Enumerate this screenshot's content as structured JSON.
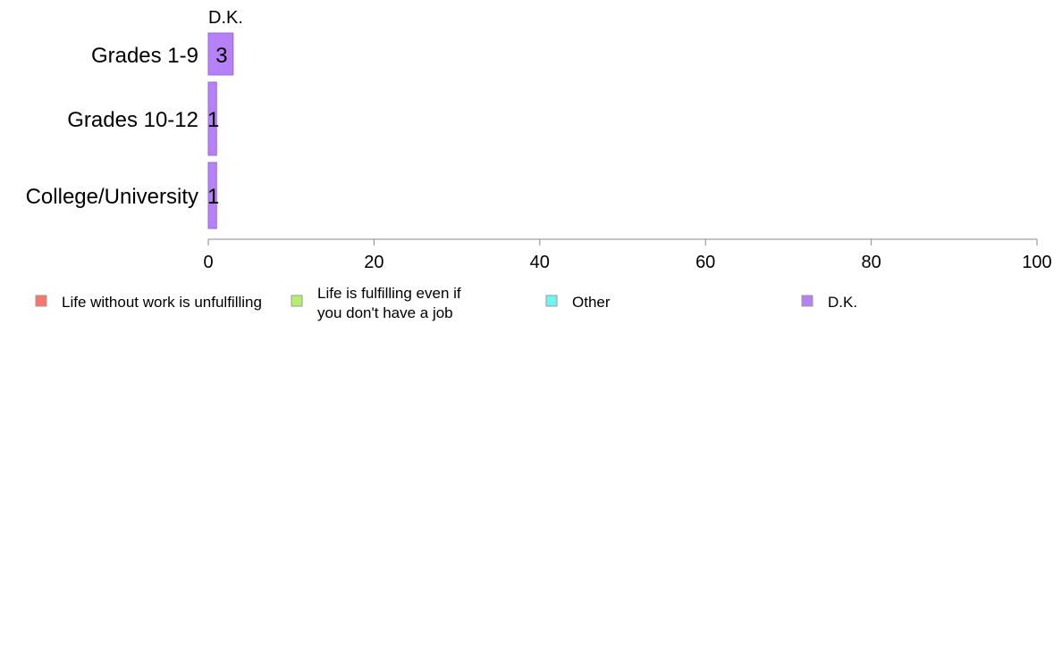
{
  "chart_data": {
    "type": "bar",
    "orientation": "horizontal",
    "stacked": true,
    "categories": [
      "Grades 1-9",
      "Grades 10-12",
      "College/University"
    ],
    "series": [
      {
        "name": "Life without work is unfulfilling",
        "color": "#F8766D",
        "values": [
          0,
          0,
          0
        ]
      },
      {
        "name": "Life is fulfilling even if you don't have a job",
        "color": "#B4F06E",
        "values": [
          0,
          0,
          0
        ]
      },
      {
        "name": "Other",
        "color": "#6EF5F0",
        "values": [
          0,
          0,
          0
        ]
      },
      {
        "name": "D.K.",
        "color": "#B580F8",
        "values": [
          3,
          1,
          1
        ]
      }
    ],
    "data_labels": [
      "3",
      "1",
      "1"
    ],
    "column_label": "D.K.",
    "xlim": [
      0,
      100
    ],
    "x_ticks": [
      0,
      20,
      40,
      60,
      80,
      100
    ],
    "legend_position": "bottom",
    "grid": false
  }
}
